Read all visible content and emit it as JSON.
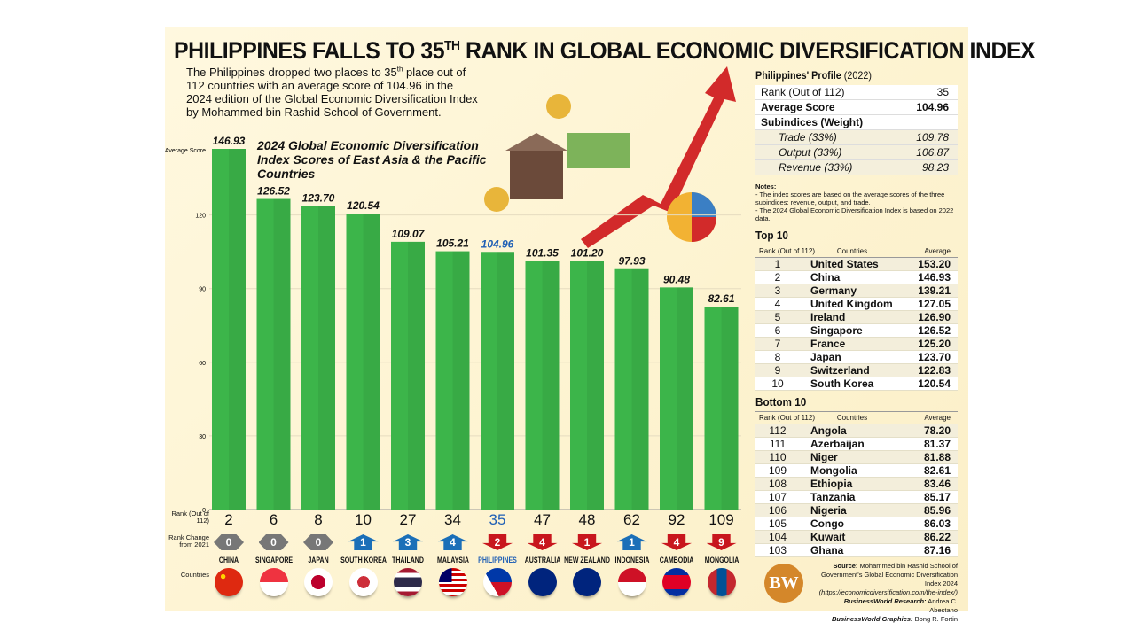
{
  "title": "PHILIPPINES FALLS TO 35",
  "title_sup": "TH",
  "title_rest": " RANK IN GLOBAL ECONOMIC DIVERSIFICATION INDEX",
  "intro_a": "The Philippines dropped two places to 35",
  "intro_sup": "th",
  "intro_b": " place out of 112 countries with an average score of 104.96 in the 2024 edition of the Global Economic Diversification Index by Mohammed bin Rashid School of Government.",
  "chart_data": {
    "type": "bar",
    "title": "2024 Global Economic Diversification Index Scores of East Asia & the Pacific Countries",
    "ylabel": "Average Score",
    "ylim": [
      0,
      150
    ],
    "yticks": [
      0,
      30,
      60,
      90,
      120
    ],
    "grid": true,
    "categories": [
      "CHINA",
      "SINGAPORE",
      "JAPAN",
      "SOUTH KOREA",
      "THAILAND",
      "MALAYSIA",
      "PHILIPPINES",
      "AUSTRALIA",
      "NEW ZEALAND",
      "INDONESIA",
      "CAMBODIA",
      "MONGOLIA"
    ],
    "values": [
      146.93,
      126.52,
      123.7,
      120.54,
      109.07,
      105.21,
      104.96,
      101.35,
      101.2,
      97.93,
      90.48,
      82.61
    ],
    "value_labels": [
      "146.93",
      "126.52",
      "123.70",
      "120.54",
      "109.07",
      "105.21",
      "104.96",
      "101.35",
      "101.20",
      "97.93",
      "90.48",
      "82.61"
    ],
    "ranks": [
      "2",
      "6",
      "8",
      "10",
      "27",
      "34",
      "35",
      "47",
      "48",
      "62",
      "92",
      "109"
    ],
    "rank_change": [
      {
        "dir": "same",
        "value": "0"
      },
      {
        "dir": "same",
        "value": "0"
      },
      {
        "dir": "same",
        "value": "0"
      },
      {
        "dir": "up",
        "value": "1"
      },
      {
        "dir": "up",
        "value": "3"
      },
      {
        "dir": "up",
        "value": "4"
      },
      {
        "dir": "down",
        "value": "2"
      },
      {
        "dir": "down",
        "value": "4"
      },
      {
        "dir": "down",
        "value": "1"
      },
      {
        "dir": "up",
        "value": "1"
      },
      {
        "dir": "down",
        "value": "4"
      },
      {
        "dir": "down",
        "value": "9"
      }
    ],
    "highlight": "PHILIPPINES",
    "bar_color": "#3cb54a",
    "highlight_text_color": "#1f5fb5"
  },
  "row_labels": {
    "rank": "Rank (Out of 112)",
    "change": "Rank Change from 2021",
    "countries": "Countries"
  },
  "colors": {
    "up": "#1b6fb8",
    "down": "#c8161d",
    "same": "#777777"
  },
  "profile": {
    "heading": "Philippines' Profile",
    "year": "(2022)",
    "rows": [
      {
        "label": "Rank (Out of 112)",
        "value": "35"
      },
      {
        "label": "Average Score",
        "value": "104.96"
      },
      {
        "label": "Subindices (Weight)",
        "value": ""
      }
    ],
    "sub": [
      {
        "label": "Trade (33%)",
        "value": "109.78"
      },
      {
        "label": "Output (33%)",
        "value": "106.87"
      },
      {
        "label": "Revenue (33%)",
        "value": "98.23"
      }
    ]
  },
  "notes": {
    "heading": "Notes:",
    "items": [
      "- The index scores are based on the average scores of the three subindices: revenue, output, and trade.",
      "- The 2024 Global Economic Diversification Index is based on 2022 data."
    ]
  },
  "table_headers": [
    "Rank (Out of 112)",
    "Countries",
    "Average"
  ],
  "top10": {
    "heading": "Top 10",
    "rows": [
      [
        "1",
        "United States",
        "153.20"
      ],
      [
        "2",
        "China",
        "146.93"
      ],
      [
        "3",
        "Germany",
        "139.21"
      ],
      [
        "4",
        "United Kingdom",
        "127.05"
      ],
      [
        "5",
        "Ireland",
        "126.90"
      ],
      [
        "6",
        "Singapore",
        "126.52"
      ],
      [
        "7",
        "France",
        "125.20"
      ],
      [
        "8",
        "Japan",
        "123.70"
      ],
      [
        "9",
        "Switzerland",
        "122.83"
      ],
      [
        "10",
        "South Korea",
        "120.54"
      ]
    ]
  },
  "bottom10": {
    "heading": "Bottom 10",
    "rows": [
      [
        "112",
        "Angola",
        "78.20"
      ],
      [
        "111",
        "Azerbaijan",
        "81.37"
      ],
      [
        "110",
        "Niger",
        "81.88"
      ],
      [
        "109",
        "Mongolia",
        "82.61"
      ],
      [
        "108",
        "Ethiopia",
        "83.46"
      ],
      [
        "107",
        "Tanzania",
        "85.17"
      ],
      [
        "106",
        "Nigeria",
        "85.96"
      ],
      [
        "105",
        "Congo",
        "86.03"
      ],
      [
        "104",
        "Kuwait",
        "86.22"
      ],
      [
        "103",
        "Ghana",
        "87.16"
      ]
    ]
  },
  "source": {
    "label": "Source:",
    "text": "Mohammed bin Rashid School of Government's Global Economic Diversification Index 2024",
    "url": "(https://economicdiversification.com/the-index/)",
    "research_label": "BusinessWorld Research:",
    "research": "Andrea C. Abestano",
    "graphics_label": "BusinessWorld Graphics:",
    "graphics": "Bong R. Fortin"
  },
  "logo": "BW"
}
